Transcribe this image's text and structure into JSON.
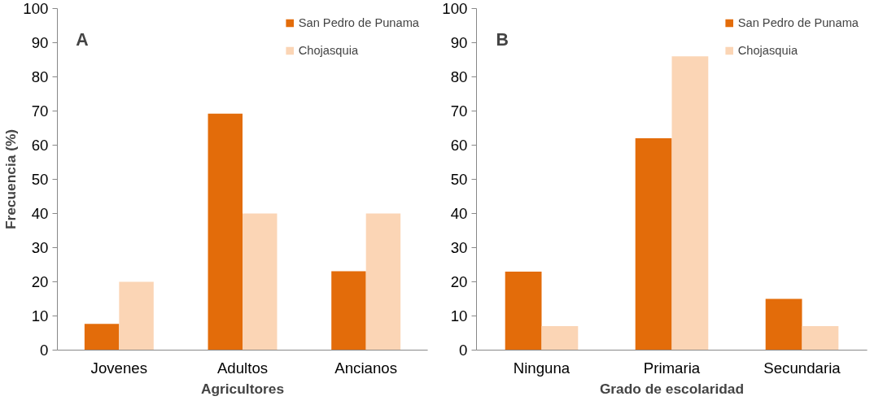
{
  "chart_data": [
    {
      "type": "bar",
      "annotations": [
        "A"
      ],
      "xlabel": "Agricultores",
      "ylabel": "Frecuencia (%)",
      "categories": [
        "Jovenes",
        "Adultos",
        "Ancianos"
      ],
      "series": [
        {
          "name": "San Pedro de Punama",
          "color": "#e36c0a",
          "values": [
            7.7,
            69.2,
            23.1
          ]
        },
        {
          "name": "Chojasquia",
          "color": "#fbd5b5",
          "values": [
            20,
            40,
            40
          ]
        }
      ],
      "ylim": [
        0,
        100
      ],
      "yticks": [
        0,
        10,
        20,
        30,
        40,
        50,
        60,
        70,
        80,
        90,
        100
      ],
      "grid": false,
      "legend": "top right"
    },
    {
      "type": "bar",
      "annotations": [
        "B"
      ],
      "xlabel": "Grado de escolaridad",
      "categories": [
        "Ninguna",
        "Primaria",
        "Secundaria"
      ],
      "series": [
        {
          "name": "San Pedro de Punama",
          "color": "#e36c0a",
          "values": [
            23,
            62,
            15
          ]
        },
        {
          "name": "Chojasquia",
          "color": "#fbd5b5",
          "values": [
            7,
            86,
            7
          ]
        }
      ],
      "ylim": [
        0,
        100
      ],
      "yticks": [
        0,
        10,
        20,
        30,
        40,
        50,
        60,
        70,
        80,
        90,
        100
      ],
      "grid": false,
      "legend": "top right"
    }
  ]
}
